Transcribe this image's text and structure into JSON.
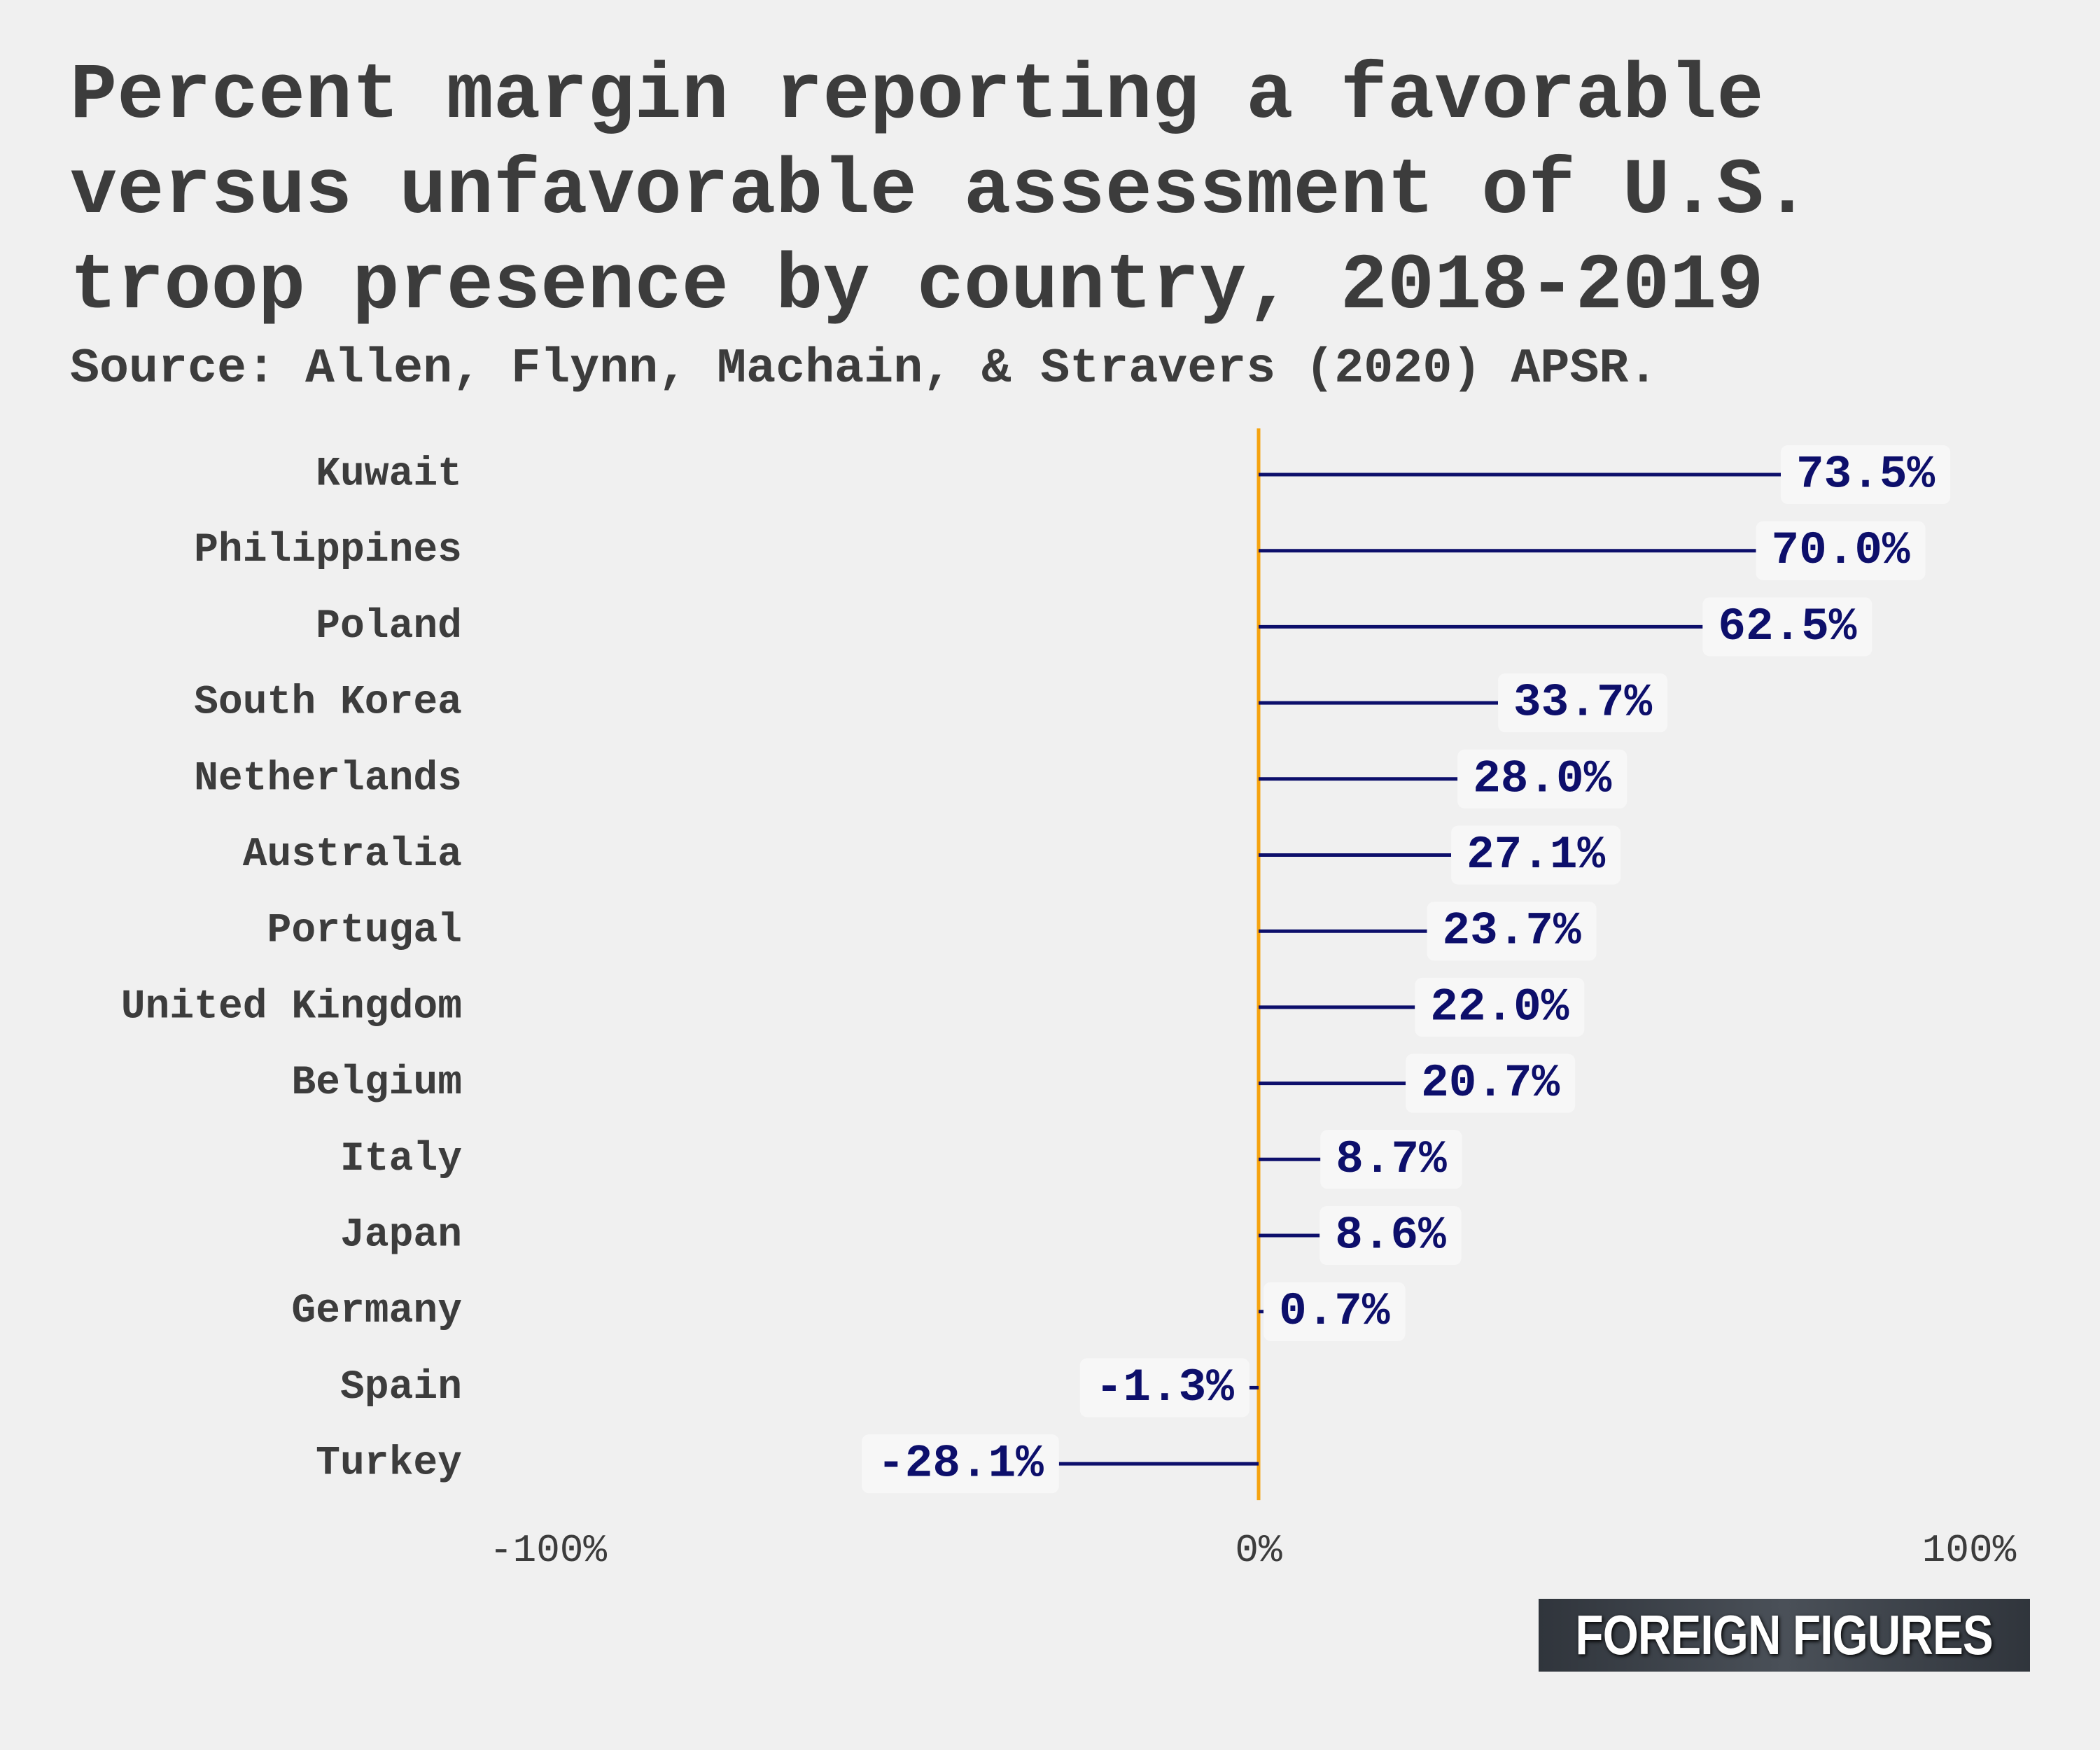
{
  "title_lines": [
    "Percent margin reporting a favorable",
    "versus unfavorable assessment of U.S.",
    "troop presence by country, 2018-2019"
  ],
  "subtitle": "Source: Allen, Flynn, Machain, & Stravers (2020) APSR.",
  "brand": "FOREIGN FIGURES",
  "colors": {
    "background": "#f0f0f0",
    "text": "#3c3c3c",
    "bar": "#0d0f6b",
    "zero_line": "#f5a30f",
    "label_bg": "#f7f7f7"
  },
  "chart_data": {
    "type": "bar",
    "orientation": "horizontal",
    "categories": [
      "Kuwait",
      "Philippines",
      "Poland",
      "South Korea",
      "Netherlands",
      "Australia",
      "Portugal",
      "United Kingdom",
      "Belgium",
      "Italy",
      "Japan",
      "Germany",
      "Spain",
      "Turkey"
    ],
    "values": [
      73.5,
      70.0,
      62.5,
      33.7,
      28.0,
      27.1,
      23.7,
      22.0,
      20.7,
      8.7,
      8.6,
      0.7,
      -1.3,
      -28.1
    ],
    "value_labels": [
      "73.5%",
      "70.0%",
      "62.5%",
      "33.7%",
      "28.0%",
      "27.1%",
      "23.7%",
      "22.0%",
      "20.7%",
      "8.7%",
      "8.6%",
      "0.7%",
      "-1.3%",
      "-28.1%"
    ],
    "xlim": [
      -100,
      100
    ],
    "xticks": [
      -100,
      0,
      100
    ],
    "xtick_labels": [
      "-100%",
      "0%",
      "100%"
    ],
    "grid": false
  }
}
